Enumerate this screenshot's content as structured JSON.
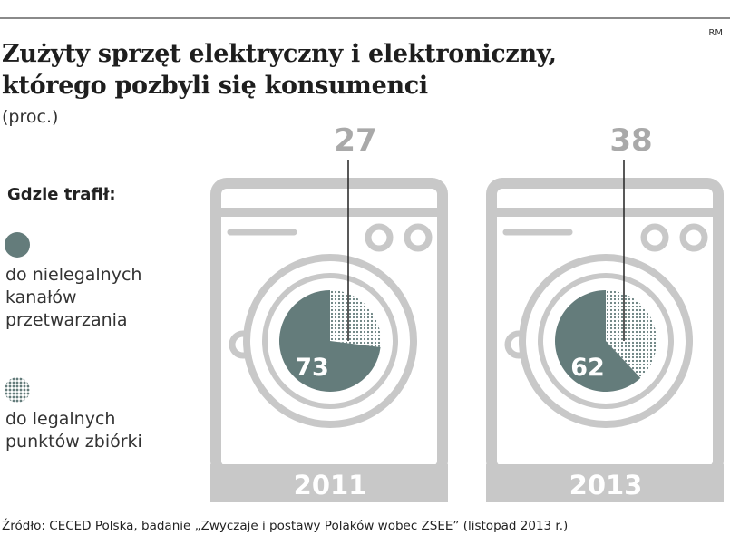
{
  "header": {
    "title_line1": "Zużyty sprzęt elektryczny i elektroniczny,",
    "title_line2": "którego pozbyli się konsumenci",
    "unit": "(proc.)",
    "credit": "RM"
  },
  "legend": {
    "title": "Gdzie trafił:",
    "items": [
      {
        "label": "do nielegalnych kanałów przetwarzania",
        "style": "solid"
      },
      {
        "label": "do legalnych punktów zbiórki",
        "style": "dotted"
      }
    ]
  },
  "chart_data": {
    "type": "pie",
    "unit": "proc.",
    "categories": [
      "do nielegalnych kanałów przetwarzania",
      "do legalnych punktów zbiórki"
    ],
    "colors": {
      "illegal": "#647c7b",
      "legal_dots": "#647c7b",
      "machine": "#c8c8c8",
      "base_text": "#ffffff",
      "label": "#a9a9a9"
    },
    "series": [
      {
        "name": "2011",
        "values": [
          73,
          27
        ]
      },
      {
        "name": "2013",
        "values": [
          62,
          38
        ]
      }
    ]
  },
  "footer": {
    "source": "Źródło: CECED Polska, badanie „Zwyczaje i postawy Polaków wobec ZSEE” (listopad 2013 r.)"
  }
}
